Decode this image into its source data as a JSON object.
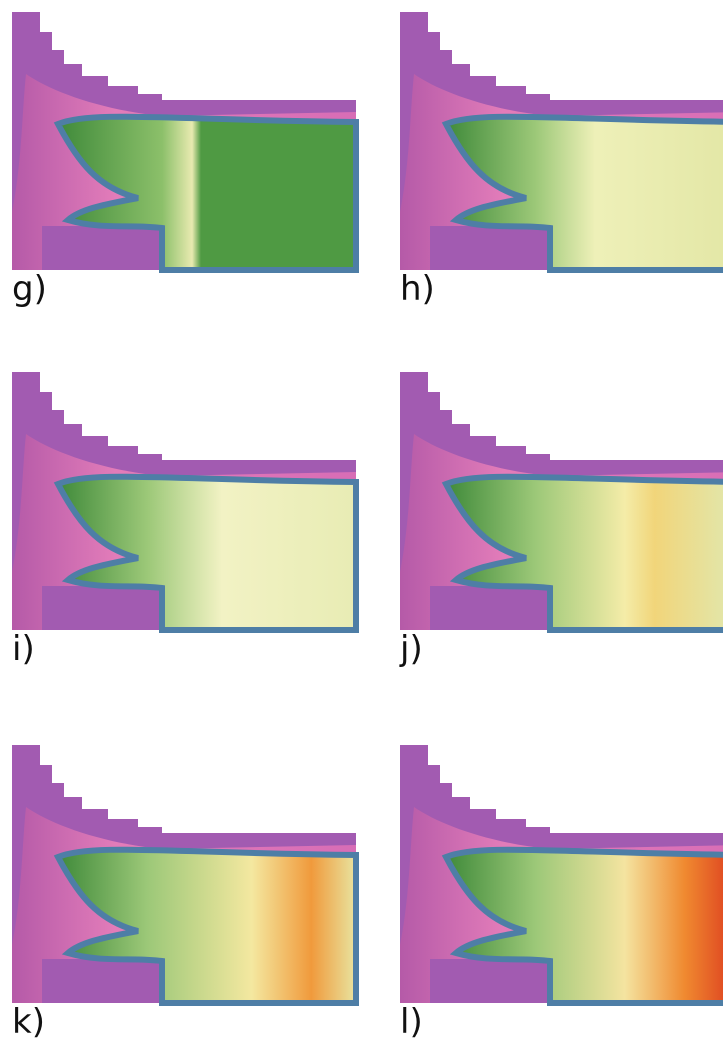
{
  "panels": [
    {
      "label": "g)"
    },
    {
      "label": "h)"
    },
    {
      "label": "i)"
    },
    {
      "label": "j)"
    },
    {
      "label": "k)"
    },
    {
      "label": "l)"
    }
  ]
}
